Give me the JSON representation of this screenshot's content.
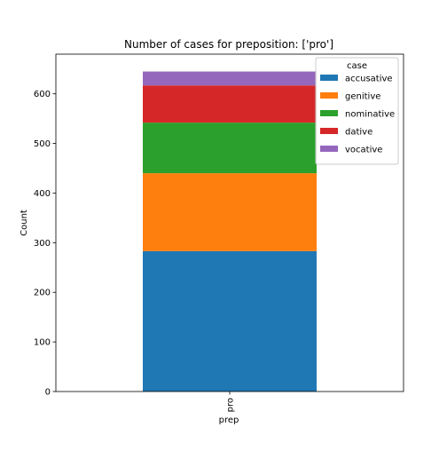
{
  "chart_data": {
    "type": "bar",
    "stacked": true,
    "title": "Number of cases for preposition: ['pro']",
    "xlabel": "prep",
    "ylabel": "Count",
    "categories": [
      "pro"
    ],
    "ylim": [
      0,
      680
    ],
    "yticks": [
      0,
      100,
      200,
      300,
      400,
      500,
      600
    ],
    "grid": false,
    "legend": {
      "title": "case",
      "placement": "top-right"
    },
    "series": [
      {
        "name": "accusative",
        "values": [
          283
        ],
        "color": "#1f77b4"
      },
      {
        "name": "genitive",
        "values": [
          157
        ],
        "color": "#ff7f0e"
      },
      {
        "name": "nominative",
        "values": [
          102
        ],
        "color": "#2ca02c"
      },
      {
        "name": "dative",
        "values": [
          75
        ],
        "color": "#d62728"
      },
      {
        "name": "vocative",
        "values": [
          28
        ],
        "color": "#9467bd"
      }
    ]
  }
}
